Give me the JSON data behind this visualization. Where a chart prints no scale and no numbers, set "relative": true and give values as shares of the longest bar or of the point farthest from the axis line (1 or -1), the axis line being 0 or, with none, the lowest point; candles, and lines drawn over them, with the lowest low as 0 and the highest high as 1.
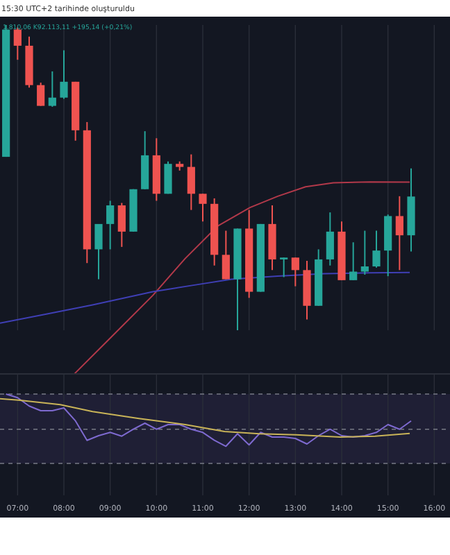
{
  "chart_data": [
    {
      "type": "candlestick",
      "relative": true,
      "annotations": [
        "15:30 UTC+2 tarihinde oluşturuldu",
        "1.810,06 K92.113,11 +195,14 (+0,21%)"
      ],
      "x": [
        6.75,
        7,
        7.25,
        7.5,
        7.75,
        8,
        8.25,
        8.5,
        8.75,
        9,
        9.25,
        9.5,
        9.75,
        10,
        10.25,
        10.5,
        10.75,
        11,
        11.25,
        11.5,
        11.75,
        12,
        12.25,
        12.5,
        12.75,
        13,
        13.25,
        13.5,
        13.75,
        14,
        14.25,
        14.5,
        14.75,
        15,
        15.25,
        15.5
      ],
      "ohlc": [
        [
          0.568,
          1.0,
          0.568,
          0.985
        ],
        [
          0.985,
          0.992,
          0.886,
          0.932
        ],
        [
          0.932,
          0.962,
          0.795,
          0.803
        ],
        [
          0.803,
          0.811,
          0.735,
          0.735
        ],
        [
          0.735,
          0.848,
          0.732,
          0.762
        ],
        [
          0.762,
          0.917,
          0.758,
          0.814
        ],
        [
          0.814,
          0.814,
          0.621,
          0.655
        ],
        [
          0.655,
          0.682,
          0.22,
          0.265
        ],
        [
          0.265,
          0.348,
          0.167,
          0.348
        ],
        [
          0.348,
          0.424,
          0.265,
          0.409
        ],
        [
          0.409,
          0.417,
          0.273,
          0.323
        ],
        [
          0.323,
          0.462,
          0.323,
          0.462
        ],
        [
          0.462,
          0.652,
          0.462,
          0.573
        ],
        [
          0.573,
          0.629,
          0.424,
          0.447
        ],
        [
          0.447,
          0.553,
          0.447,
          0.545
        ],
        [
          0.545,
          0.553,
          0.523,
          0.535
        ],
        [
          0.535,
          0.576,
          0.394,
          0.447
        ],
        [
          0.447,
          0.447,
          0.356,
          0.414
        ],
        [
          0.414,
          0.432,
          0.212,
          0.247
        ],
        [
          0.247,
          0.326,
          0.167,
          0.167
        ],
        [
          0.167,
          0.333,
          0,
          0.333
        ],
        [
          0.333,
          0.394,
          0.106,
          0.126
        ],
        [
          0.126,
          0.348,
          0.126,
          0.348
        ],
        [
          0.348,
          0.409,
          0.197,
          0.232
        ],
        [
          0.232,
          0.238,
          0.174,
          0.238
        ],
        [
          0.238,
          0.238,
          0.144,
          0.197
        ],
        [
          0.197,
          0.227,
          0.035,
          0.08
        ],
        [
          0.08,
          0.265,
          0.08,
          0.232
        ],
        [
          0.232,
          0.386,
          0.212,
          0.323
        ],
        [
          0.323,
          0.356,
          0.164,
          0.164
        ],
        [
          0.164,
          0.288,
          0.164,
          0.192
        ],
        [
          0.192,
          0.326,
          0.182,
          0.209
        ],
        [
          0.209,
          0.326,
          0.205,
          0.261
        ],
        [
          0.261,
          0.379,
          0.177,
          0.374
        ],
        [
          0.374,
          0.439,
          0.197,
          0.311
        ],
        [
          0.311,
          0.53,
          0.258,
          0.438
        ]
      ],
      "colors": [
        "#26a69a",
        "#ef5350",
        "#ef5350",
        "#ef5350",
        "#26a69a",
        "#26a69a",
        "#ef5350",
        "#ef5350",
        "#26a69a",
        "#26a69a",
        "#ef5350",
        "#26a69a",
        "#26a69a",
        "#ef5350",
        "#26a69a",
        "#ef5350",
        "#ef5350",
        "#ef5350",
        "#ef5350",
        "#ef5350",
        "#26a69a",
        "#ef5350",
        "#26a69a",
        "#ef5350",
        "#26a69a",
        "#ef5350",
        "#ef5350",
        "#26a69a",
        "#26a69a",
        "#ef5350",
        "#26a69a",
        "#26a69a",
        "#26a69a",
        "#26a69a",
        "#ef5350",
        "#26a69a"
      ],
      "series": [
        {
          "type": "line",
          "color": "#b2394a",
          "x": [
            8.22,
            8.92,
            9.92,
            10.62,
            11.32,
            12.02,
            12.62,
            13.22,
            13.82,
            14.62,
            15.47
          ],
          "values": [
            -0.144,
            -0.038,
            0.114,
            0.235,
            0.341,
            0.402,
            0.439,
            0.47,
            0.483,
            0.486,
            0.485
          ]
        },
        {
          "type": "line",
          "color": "#3f3fb5",
          "x": [
            6.62,
            7.62,
            8.62,
            9.92,
            10.82,
            11.62,
            12.62,
            13.62,
            14.62,
            15.47
          ],
          "values": [
            0.023,
            0.053,
            0.083,
            0.126,
            0.148,
            0.167,
            0.177,
            0.185,
            0.188,
            0.189
          ]
        }
      ],
      "xlim": [
        6.62,
        16.34
      ],
      "xticks": [
        7,
        8,
        9,
        10,
        11,
        12,
        13,
        14,
        15,
        16
      ],
      "tick_labels": false,
      "grid": "x"
    },
    {
      "type": "line",
      "relative": true,
      "series": [
        {
          "color": "#7e6ad0",
          "x": [
            6.75,
            7,
            7.25,
            7.5,
            7.75,
            8,
            8.25,
            8.5,
            8.75,
            9,
            9.25,
            9.5,
            9.75,
            10,
            10.25,
            10.5,
            10.75,
            11,
            11.25,
            11.5,
            11.75,
            12,
            12.25,
            12.5,
            12.75,
            13,
            13.25,
            13.5,
            13.75,
            14,
            14.25,
            14.5,
            14.75,
            15,
            15.25,
            15.5
          ],
          "values": [
            1.0,
            0.947,
            0.827,
            0.76,
            0.76,
            0.8,
            0.613,
            0.333,
            0.4,
            0.447,
            0.393,
            0.493,
            0.58,
            0.493,
            0.56,
            0.56,
            0.493,
            0.447,
            0.333,
            0.247,
            0.427,
            0.267,
            0.447,
            0.38,
            0.38,
            0.36,
            0.28,
            0.4,
            0.493,
            0.4,
            0.38,
            0.4,
            0.447,
            0.56,
            0.493,
            0.613
          ]
        },
        {
          "color": "#c9b458",
          "x": [
            6.62,
            7.02,
            7.92,
            8.62,
            9.62,
            10.62,
            11.47,
            12.22,
            13.02,
            13.97,
            14.72,
            15.47
          ],
          "values": [
            0.933,
            0.913,
            0.847,
            0.747,
            0.647,
            0.56,
            0.46,
            0.427,
            0.413,
            0.38,
            0.393,
            0.433
          ]
        }
      ],
      "ref_lines": [
        {
          "axis": "y",
          "value": 1.0,
          "color": "#787b86",
          "line_style": "dashed"
        },
        {
          "axis": "y",
          "value": 0.493,
          "color": "#787b86",
          "line_style": "dashed"
        },
        {
          "axis": "y",
          "value": 0,
          "color": "#787b86",
          "line_style": "dashed"
        }
      ],
      "bands": [
        {
          "axis": "y",
          "from": 0,
          "to": 1.0,
          "color": "#7e57c2"
        }
      ],
      "xlim": [
        6.62,
        16.34
      ],
      "xticks": [
        {
          "value": 7,
          "label": "07:00"
        },
        {
          "value": 8,
          "label": "08:00"
        },
        {
          "value": 9,
          "label": "09:00"
        },
        {
          "value": 10,
          "label": "10:00"
        },
        {
          "value": 11,
          "label": "11:00"
        },
        {
          "value": 12,
          "label": "12:00"
        },
        {
          "value": 13,
          "label": "13:00"
        },
        {
          "value": 14,
          "label": "14:00"
        },
        {
          "value": 15,
          "label": "15:00"
        },
        {
          "value": 16,
          "label": "16:00"
        }
      ],
      "tick_labels": "x",
      "grid": "x"
    }
  ]
}
